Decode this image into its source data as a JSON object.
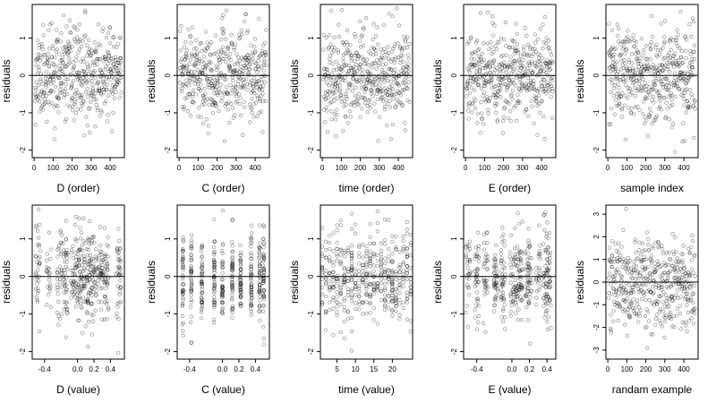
{
  "chart_data": [
    {
      "type": "scatter",
      "xlabel": "D (order)",
      "ylabel": "residuals",
      "xlim": [
        -10,
        475
      ],
      "ylim": [
        -2.2,
        1.9
      ],
      "xticks": [
        0,
        100,
        200,
        300,
        400
      ],
      "xticklabels": [
        "0",
        "100",
        "200",
        "300",
        "400"
      ],
      "yticks": [
        -2,
        -1,
        0,
        1
      ],
      "yticklabels": [
        "-2",
        "-1",
        "0",
        "1"
      ],
      "hline": 0,
      "n": 460,
      "xgen": "order",
      "seed": 11,
      "points_note": "residuals scattered around 0, sd ~0.6"
    },
    {
      "type": "scatter",
      "xlabel": "C (order)",
      "ylabel": "residuals",
      "xlim": [
        -10,
        475
      ],
      "ylim": [
        -2.2,
        1.9
      ],
      "xticks": [
        0,
        100,
        200,
        300,
        400
      ],
      "xticklabels": [
        "0",
        "100",
        "200",
        "300",
        "400"
      ],
      "yticks": [
        -2,
        -1,
        0,
        1
      ],
      "yticklabels": [
        "-2",
        "-1",
        "0",
        "1"
      ],
      "hline": 0,
      "n": 460,
      "xgen": "order",
      "seed": 23
    },
    {
      "type": "scatter",
      "xlabel": "time (order)",
      "ylabel": "residuals",
      "xlim": [
        -10,
        475
      ],
      "ylim": [
        -2.2,
        1.9
      ],
      "xticks": [
        0,
        100,
        200,
        300,
        400
      ],
      "xticklabels": [
        "0",
        "100",
        "200",
        "300",
        "400"
      ],
      "yticks": [
        -2,
        -1,
        0,
        1
      ],
      "yticklabels": [
        "-2",
        "-1",
        "0",
        "1"
      ],
      "hline": 0,
      "n": 460,
      "xgen": "order",
      "seed": 37
    },
    {
      "type": "scatter",
      "xlabel": "E (order)",
      "ylabel": "residuals",
      "xlim": [
        -10,
        475
      ],
      "ylim": [
        -2.2,
        1.9
      ],
      "xticks": [
        0,
        100,
        200,
        300,
        400
      ],
      "xticklabels": [
        "0",
        "100",
        "200",
        "300",
        "400"
      ],
      "yticks": [
        -2,
        -1,
        0,
        1
      ],
      "yticklabels": [
        "-2",
        "-1",
        "0",
        "1"
      ],
      "hline": 0,
      "n": 460,
      "xgen": "order",
      "seed": 41
    },
    {
      "type": "scatter",
      "xlabel": "sample index",
      "ylabel": "residuals",
      "xlim": [
        -10,
        475
      ],
      "ylim": [
        -2.2,
        1.9
      ],
      "xticks": [
        0,
        100,
        200,
        300,
        400
      ],
      "xticklabels": [
        "0",
        "100",
        "200",
        "300",
        "400"
      ],
      "yticks": [
        -2,
        -1,
        0,
        1
      ],
      "yticklabels": [
        "-2",
        "-1",
        "0",
        "1"
      ],
      "hline": 0,
      "n": 460,
      "xgen": "order",
      "seed": 53
    },
    {
      "type": "scatter",
      "xlabel": "D (value)",
      "ylabel": "residuals",
      "xlim": [
        -0.55,
        0.57
      ],
      "ylim": [
        -2.2,
        1.9
      ],
      "xticks": [
        -0.4,
        0.0,
        0.2,
        0.4
      ],
      "xticklabels": [
        "-0.4",
        "0.0",
        "0.2",
        "0.4"
      ],
      "yticks": [
        -2,
        -1,
        0,
        1
      ],
      "yticklabels": [
        "-2",
        "-1",
        "0",
        "1"
      ],
      "hline": 0,
      "n": 460,
      "xgen": "clusters",
      "clusters": [
        -0.48,
        -0.35,
        -0.22,
        -0.15,
        -0.05,
        0.0,
        0.05,
        0.1,
        0.15,
        0.2,
        0.28,
        0.35,
        0.5
      ],
      "spread": 0.03,
      "seed": 61
    },
    {
      "type": "scatter",
      "xlabel": "C (value)",
      "ylabel": "residuals",
      "xlim": [
        -0.55,
        0.57
      ],
      "ylim": [
        -2.2,
        1.9
      ],
      "xticks": [
        -0.4,
        0.0,
        0.2,
        0.4
      ],
      "xticklabels": [
        "-0.4",
        "0.0",
        "0.2",
        "0.4"
      ],
      "yticks": [
        -2,
        -1,
        0,
        1
      ],
      "yticklabels": [
        "-2",
        "-1",
        "0",
        "1"
      ],
      "hline": 0,
      "n": 460,
      "xgen": "clusters",
      "clusters": [
        -0.48,
        -0.38,
        -0.25,
        -0.1,
        0.0,
        0.12,
        0.22,
        0.35,
        0.45,
        0.5
      ],
      "spread": 0.006,
      "seed": 71
    },
    {
      "type": "scatter",
      "xlabel": "time (value)",
      "ylabel": "residuals",
      "xlim": [
        0.5,
        25.5
      ],
      "ylim": [
        -2.2,
        1.9
      ],
      "xticks": [
        5,
        10,
        15,
        20
      ],
      "xticklabels": [
        "5",
        "10",
        "15",
        "20"
      ],
      "yticks": [
        -2,
        -1,
        0,
        1
      ],
      "yticklabels": [
        "-2",
        "-1",
        "0",
        "1"
      ],
      "hline": 0,
      "n": 460,
      "xgen": "integers",
      "imin": 1,
      "imax": 25,
      "seed": 83
    },
    {
      "type": "scatter",
      "xlabel": "E (value)",
      "ylabel": "residuals",
      "xlim": [
        -0.55,
        0.5
      ],
      "ylim": [
        -2.2,
        1.9
      ],
      "xticks": [
        -0.4,
        0.0,
        0.2,
        0.4
      ],
      "xticklabels": [
        "-0.4",
        "0.0",
        "0.2",
        "0.4"
      ],
      "yticks": [
        -2,
        -1,
        0,
        1
      ],
      "yticklabels": [
        "-2",
        "-1",
        "0",
        "1"
      ],
      "hline": 0,
      "n": 460,
      "xgen": "clusters",
      "clusters": [
        -0.5,
        -0.4,
        -0.3,
        -0.18,
        -0.1,
        0.0,
        0.05,
        0.1,
        0.17,
        0.2,
        0.3,
        0.38,
        0.42
      ],
      "spread": 0.025,
      "seed": 97
    },
    {
      "type": "scatter",
      "xlabel": "randam example",
      "ylabel": "residuals",
      "xlim": [
        -10,
        475
      ],
      "ylim": [
        -3.4,
        3.4
      ],
      "xticks": [
        0,
        100,
        200,
        300,
        400
      ],
      "xticklabels": [
        "0",
        "100",
        "200",
        "300",
        "400"
      ],
      "yticks": [
        -3,
        -2,
        -1,
        0,
        1,
        2,
        3
      ],
      "yticklabels": [
        "-3",
        "-2",
        "-1",
        "0",
        "1",
        "2",
        "3"
      ],
      "hline": 0,
      "n": 460,
      "xgen": "order",
      "seed": 101,
      "sd": 1.0
    }
  ]
}
